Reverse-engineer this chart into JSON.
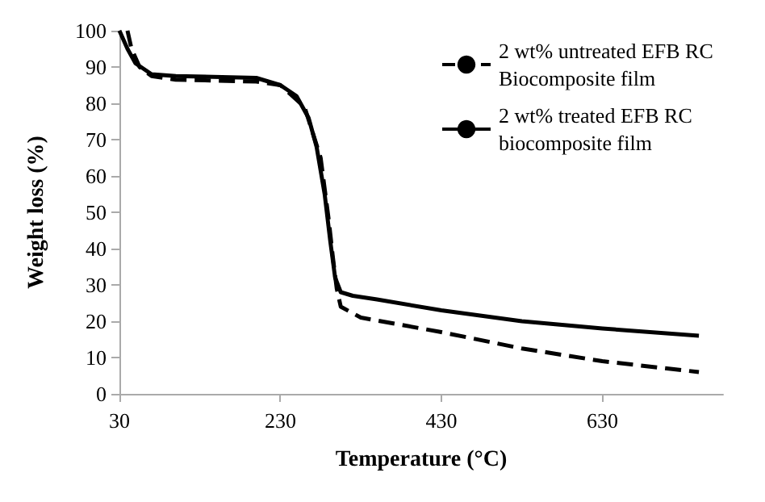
{
  "chart_data": {
    "type": "line",
    "xlabel": "Temperature (°C)",
    "ylabel": "Weight loss (%)",
    "xlim": [
      30,
      780
    ],
    "xticks": [
      30,
      230,
      430,
      630
    ],
    "ylim": [
      0,
      100
    ],
    "yticks": [
      0,
      10,
      20,
      30,
      40,
      50,
      60,
      70,
      80,
      90,
      100
    ],
    "grid": false,
    "legend": "top right",
    "marker": "none",
    "series": [
      {
        "name": "2 wt% untreated EFB RC Biocomposite film",
        "color": "#000000",
        "line_style": "dashed",
        "x": [
          40,
          45,
          55,
          70,
          100,
          200,
          230,
          260,
          280,
          290,
          295,
          300,
          305,
          330,
          430,
          530,
          630,
          750
        ],
        "values": [
          100,
          95,
          90,
          87.5,
          86.5,
          86,
          85,
          79,
          65,
          48,
          38,
          29,
          24,
          21,
          17,
          12.5,
          9,
          6
        ]
      },
      {
        "name": "2 wt% treated EFB RC biocomposite film",
        "color": "#000000",
        "line_style": "solid",
        "x": [
          30,
          40,
          50,
          70,
          100,
          200,
          230,
          250,
          265,
          275,
          285,
          292,
          298,
          305,
          320,
          350,
          430,
          530,
          630,
          750
        ],
        "values": [
          100,
          95,
          91,
          88,
          87.5,
          87,
          85,
          82,
          76,
          68,
          55,
          42,
          32,
          28,
          27,
          26,
          23,
          20,
          18,
          16
        ]
      }
    ]
  }
}
